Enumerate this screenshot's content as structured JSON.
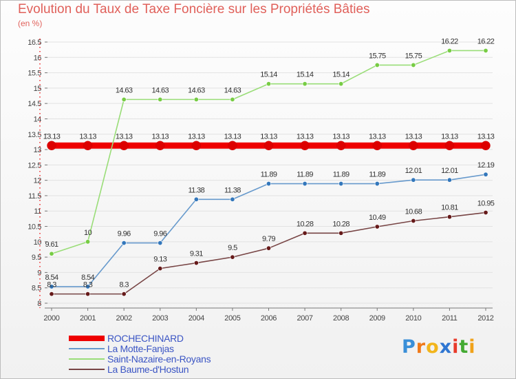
{
  "chart_data": {
    "type": "line",
    "title": "Evolution du Taux de Taxe Foncière sur les Propriétés Bâties",
    "subtitle": "(en %)",
    "x": [
      "2000",
      "2001",
      "2002",
      "2003",
      "2004",
      "2005",
      "2006",
      "2007",
      "2008",
      "2009",
      "2010",
      "2011",
      "2012"
    ],
    "ylim": [
      8,
      16.5
    ],
    "yticks": [
      "8",
      "8.5",
      "9",
      "9.5",
      "10",
      "10.5",
      "11",
      "11.5",
      "12",
      "12.5",
      "13",
      "13.5",
      "14",
      "14.5",
      "15",
      "15.5",
      "16",
      "16.5"
    ],
    "series": [
      {
        "name": "ROCHECHINARD",
        "color": "#ee0000",
        "point_color": "#dd0000",
        "style": "thick",
        "values": [
          13.13,
          13.13,
          13.13,
          13.13,
          13.13,
          13.13,
          13.13,
          13.13,
          13.13,
          13.13,
          13.13,
          13.13,
          13.13
        ],
        "labels": [
          "13.13",
          "13.13",
          "13.13",
          "13.13",
          "13.13",
          "13.13",
          "13.13",
          "13.13",
          "13.13",
          "13.13",
          "13.13",
          "13.13",
          "13.13"
        ]
      },
      {
        "name": "La Motte-Fanjas",
        "color": "#6699cc",
        "point_color": "#3377bb",
        "style": "normal",
        "values": [
          8.54,
          8.54,
          9.96,
          9.96,
          11.38,
          11.38,
          11.89,
          11.89,
          11.89,
          11.89,
          12.01,
          12.01,
          12.19
        ],
        "labels": [
          "8.54",
          "8.54",
          "9.96",
          "9.96",
          "11.38",
          "11.38",
          "11.89",
          "11.89",
          "11.89",
          "11.89",
          "12.01",
          "12.01",
          "12.19"
        ]
      },
      {
        "name": "Saint-Nazaire-en-Royans",
        "color": "#99dd77",
        "point_color": "#77cc44",
        "style": "normal",
        "values": [
          9.61,
          10,
          14.63,
          14.63,
          14.63,
          14.63,
          15.14,
          15.14,
          15.14,
          15.75,
          15.75,
          16.22,
          16.22
        ],
        "labels": [
          "9.61",
          "10",
          "14.63",
          "14.63",
          "14.63",
          "14.63",
          "15.14",
          "15.14",
          "15.14",
          "15.75",
          "15.75",
          "16.22",
          "16.22"
        ]
      },
      {
        "name": "La Baume-d'Hostun",
        "color": "#774444",
        "point_color": "#661a1a",
        "style": "normal",
        "values": [
          8.3,
          8.3,
          8.3,
          9.13,
          9.31,
          9.5,
          9.79,
          10.28,
          10.28,
          10.49,
          10.68,
          10.81,
          10.95
        ],
        "labels": [
          "8.3",
          "8.3",
          "8.3",
          "9.13",
          "9.31",
          "9.5",
          "9.79",
          "10.28",
          "10.28",
          "10.49",
          "10.68",
          "10.81",
          "10.95"
        ]
      }
    ]
  },
  "logo": {
    "letters": [
      "P",
      "r",
      "o",
      "x",
      "i",
      "t",
      "i"
    ],
    "colors": [
      "#3a8fd8",
      "#f07a1a",
      "#f2b51c",
      "#2f76d2",
      "#e83a2a",
      "#44aa33",
      "#f0a21a"
    ]
  }
}
